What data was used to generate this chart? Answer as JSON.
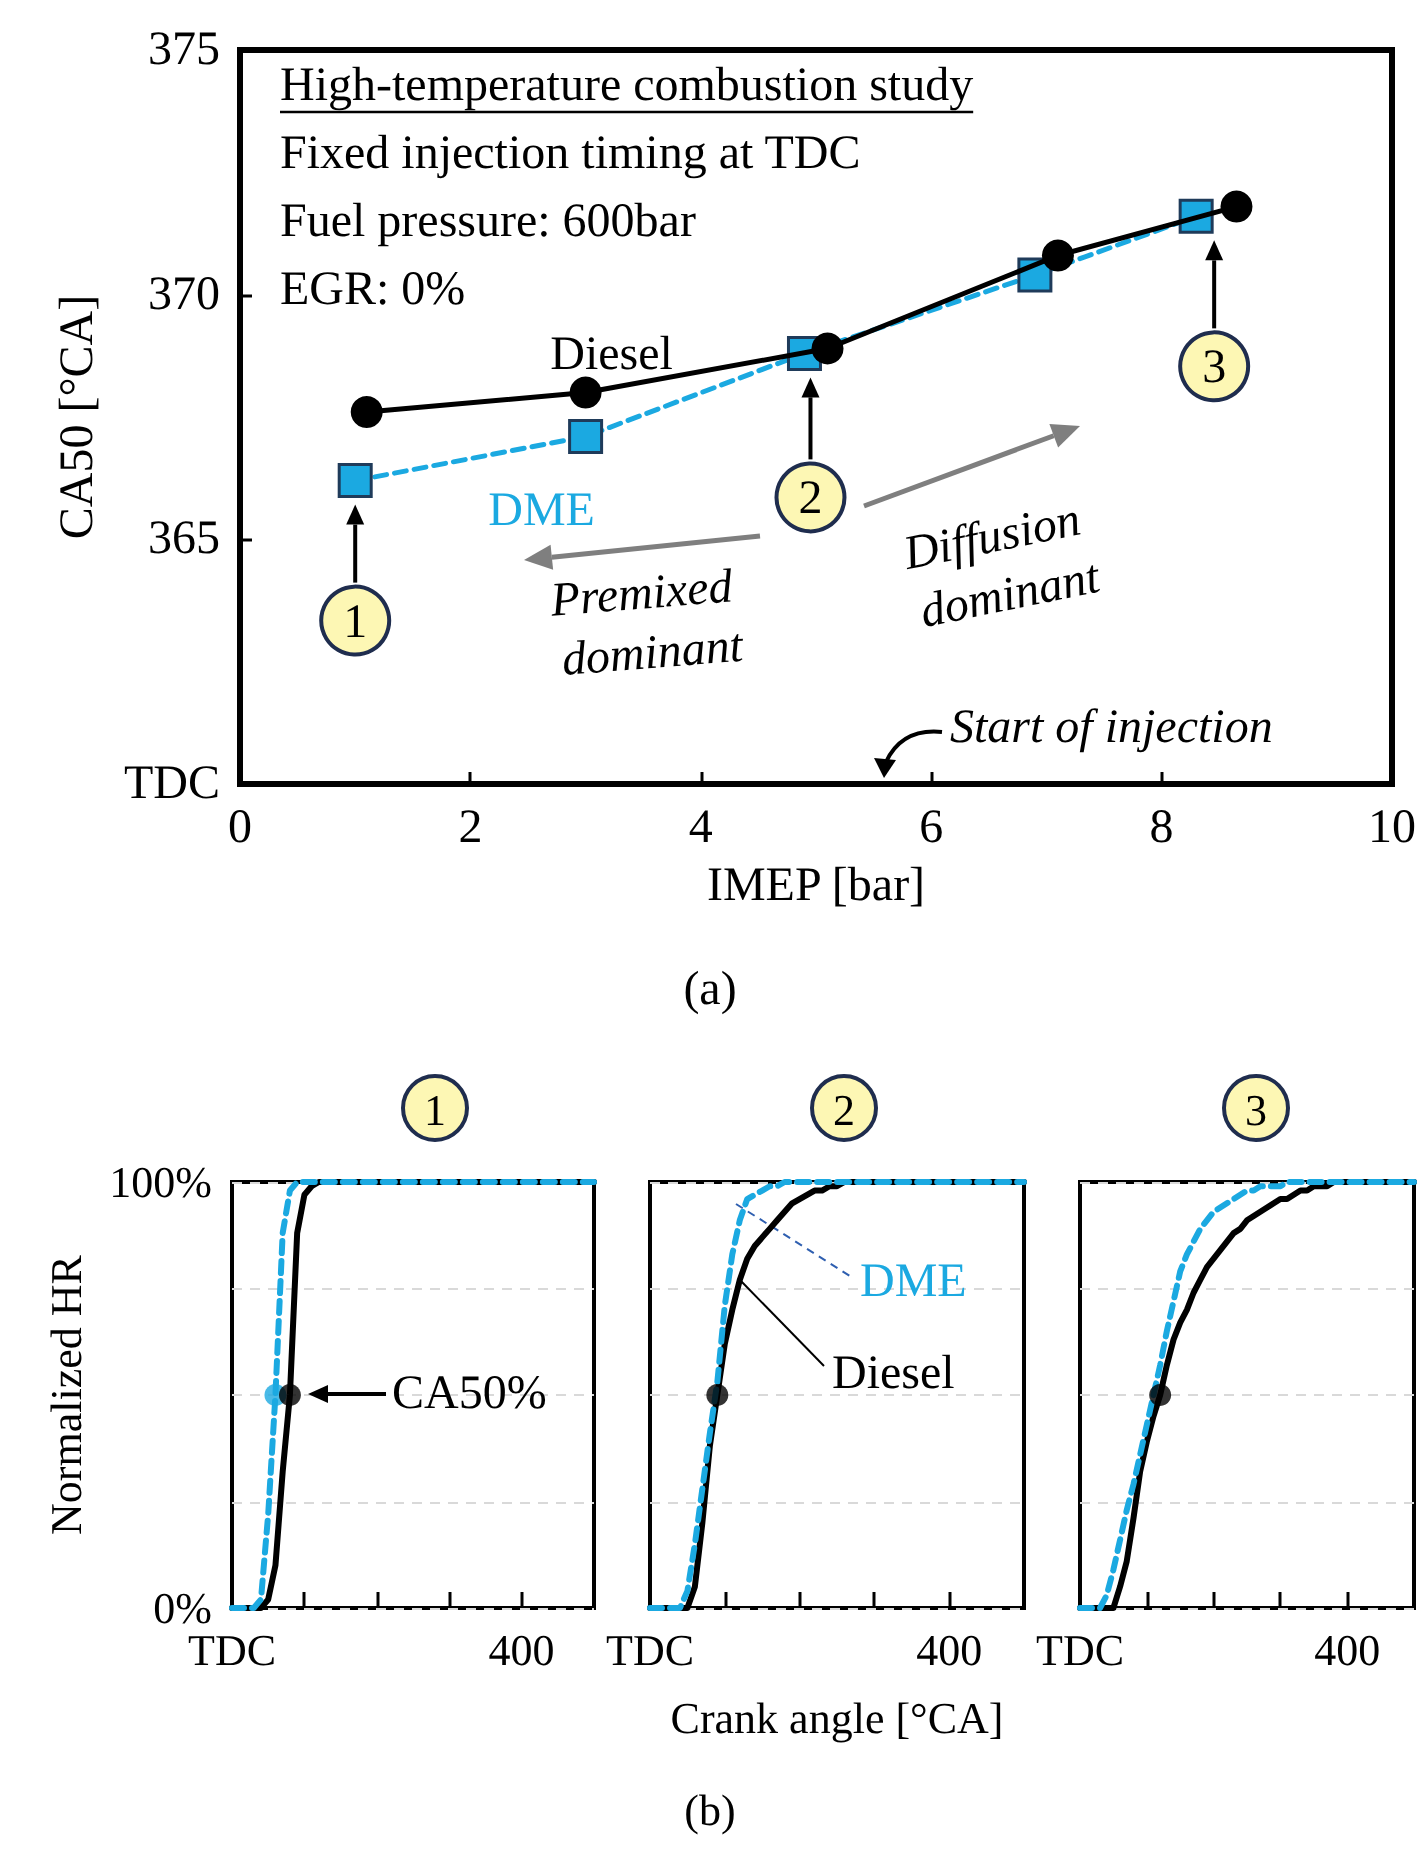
{
  "chart_data": [
    {
      "type": "line",
      "xlabel": "IMEP [bar]",
      "ylabel": "CA50 [°CA]",
      "xlim": [
        0,
        10
      ],
      "xticks": [
        0,
        2,
        4,
        6,
        8,
        10
      ],
      "ylim": [
        360,
        375
      ],
      "yticks": [
        {
          "value": 360,
          "label": "TDC"
        },
        365,
        370,
        375
      ],
      "annotations": [
        "High-temperature combustion study",
        "Fixed injection timing at TDC",
        "Fuel pressure: 600bar",
        "EGR: 0%",
        "Premixed dominant",
        "Diffusion dominant",
        "Start of injection",
        {
          "text": "1",
          "x": 1.0,
          "y": 366.2
        },
        {
          "text": "2",
          "x": 4.9,
          "y": 368.8
        },
        {
          "text": "3",
          "x": 8.3,
          "y": 371.6
        },
        "(a)"
      ],
      "series": [
        {
          "name": "Diesel",
          "color": "#000000",
          "marker": "circle",
          "line_style": "solid",
          "x": [
            1.1,
            3.0,
            5.1,
            7.1,
            8.65
          ],
          "values": [
            367.6,
            368.0,
            368.9,
            370.8,
            371.8
          ]
        },
        {
          "name": "DME",
          "color": "#1ba9e1",
          "marker": "square",
          "line_style": "dashed",
          "x": [
            1.0,
            3.0,
            4.9,
            6.9,
            8.3
          ],
          "values": [
            366.2,
            367.1,
            368.8,
            370.4,
            371.6
          ]
        }
      ]
    },
    {
      "type": "line",
      "title": "1",
      "ylabel": "Normalized HR",
      "categories": [
        "TDC",
        null,
        null,
        null,
        null,
        null,
        null,
        null,
        null,
        null,
        null,
        null,
        null,
        null,
        null,
        null,
        null,
        null,
        null,
        null,
        null,
        null,
        null,
        null,
        null,
        null,
        null,
        null,
        null,
        null,
        null,
        null,
        null,
        null,
        null,
        null,
        null,
        null,
        null,
        null,
        "400",
        null,
        null,
        null,
        null,
        null,
        null,
        null,
        null,
        null,
        null
      ],
      "ylim": [
        0,
        100
      ],
      "yticks": [
        {
          "value": 0,
          "label": "0%"
        },
        {
          "value": 25,
          "label": null
        },
        {
          "value": 50,
          "label": null
        },
        {
          "value": 75,
          "label": null
        },
        {
          "value": 100,
          "label": "100%"
        }
      ],
      "grid": "y",
      "marker": "none",
      "annotations": [
        "CA50%"
      ],
      "series": [
        {
          "color": "#1ba9e1",
          "line_style": "dashed",
          "values": [
            0,
            0,
            0,
            0,
            2,
            22,
            50,
            88,
            98,
            100,
            100,
            100,
            100,
            100,
            100,
            100,
            100,
            100,
            100,
            100,
            100,
            100,
            100,
            100,
            100,
            100,
            100,
            100,
            100,
            100,
            100,
            100,
            100,
            100,
            100,
            100,
            100,
            100,
            100,
            100,
            100,
            100,
            100,
            100,
            100,
            100,
            100,
            100,
            100,
            100,
            100
          ]
        },
        {
          "color": "#000000",
          "line_style": "solid",
          "values": [
            0,
            0,
            0,
            0,
            0,
            2,
            10,
            32,
            50,
            88,
            97,
            99,
            100,
            100,
            100,
            100,
            100,
            100,
            100,
            100,
            100,
            100,
            100,
            100,
            100,
            100,
            100,
            100,
            100,
            100,
            100,
            100,
            100,
            100,
            100,
            100,
            100,
            100,
            100,
            100,
            100,
            100,
            100,
            100,
            100,
            100,
            100,
            100,
            100,
            100,
            100
          ]
        },
        {
          "type": "scatter",
          "color": "#1ba9e1",
          "marker": "circle",
          "values": [
            null,
            null,
            null,
            null,
            null,
            null,
            50,
            null,
            null,
            null,
            null,
            null,
            null,
            null,
            null,
            null,
            null,
            null,
            null,
            null,
            null,
            null,
            null,
            null,
            null,
            null,
            null,
            null,
            null,
            null,
            null,
            null,
            null,
            null,
            null,
            null,
            null,
            null,
            null,
            null,
            null,
            null,
            null,
            null,
            null,
            null,
            null,
            null,
            null,
            null,
            null
          ]
        },
        {
          "type": "scatter",
          "color": "#000000",
          "marker": "circle",
          "values": [
            null,
            null,
            null,
            null,
            null,
            null,
            null,
            null,
            50,
            null,
            null,
            null,
            null,
            null,
            null,
            null,
            null,
            null,
            null,
            null,
            null,
            null,
            null,
            null,
            null,
            null,
            null,
            null,
            null,
            null,
            null,
            null,
            null,
            null,
            null,
            null,
            null,
            null,
            null,
            null,
            null,
            null,
            null,
            null,
            null,
            null,
            null,
            null,
            null,
            null,
            null
          ]
        }
      ]
    },
    {
      "type": "line",
      "title": "2",
      "xlabel": "Crank angle [°CA]",
      "categories": [
        "TDC",
        null,
        null,
        null,
        null,
        null,
        null,
        null,
        null,
        null,
        null,
        null,
        null,
        null,
        null,
        null,
        null,
        null,
        null,
        null,
        null,
        null,
        null,
        null,
        null,
        null,
        null,
        null,
        null,
        null,
        null,
        null,
        null,
        null,
        null,
        null,
        null,
        null,
        null,
        null,
        "400",
        null,
        null,
        null,
        null,
        null,
        null,
        null,
        null,
        null,
        null
      ],
      "ylim": [
        0,
        100
      ],
      "yticks": [
        {
          "value": 0,
          "label": "0%"
        },
        {
          "value": 25,
          "label": null
        },
        {
          "value": 50,
          "label": null
        },
        {
          "value": 75,
          "label": null
        },
        {
          "value": 100,
          "label": "100%"
        }
      ],
      "grid": "y",
      "marker": "none",
      "tick_labels": "x",
      "annotations": [
        "(b)"
      ],
      "series": [
        {
          "name": "DME",
          "color": "#1ba9e1",
          "line_style": "dashed",
          "values": [
            0,
            0,
            0,
            0,
            0,
            4,
            15,
            28,
            41,
            53,
            71,
            83,
            91,
            96,
            97,
            98,
            99,
            99,
            100,
            100,
            100,
            100,
            100,
            100,
            100,
            100,
            100,
            100,
            100,
            100,
            100,
            100,
            100,
            100,
            100,
            100,
            100,
            100,
            100,
            100,
            100,
            100,
            100,
            100,
            100,
            100,
            100,
            100,
            100,
            100,
            100
          ]
        },
        {
          "name": "Diesel",
          "color": "#000000",
          "line_style": "solid",
          "values": [
            0,
            0,
            0,
            0,
            0,
            0,
            5,
            20,
            38,
            50,
            62,
            70,
            77,
            82,
            85,
            87,
            89,
            91,
            93,
            95,
            96,
            97,
            98,
            98,
            99,
            99,
            100,
            100,
            100,
            100,
            100,
            100,
            100,
            100,
            100,
            100,
            100,
            100,
            100,
            100,
            100,
            100,
            100,
            100,
            100,
            100,
            100,
            100,
            100,
            100,
            100
          ]
        },
        {
          "type": "scatter",
          "color": "#000000",
          "marker": "circle",
          "values": [
            null,
            null,
            null,
            null,
            null,
            null,
            null,
            null,
            null,
            50,
            null,
            null,
            null,
            null,
            null,
            null,
            null,
            null,
            null,
            null,
            null,
            null,
            null,
            null,
            null,
            null,
            null,
            null,
            null,
            null,
            null,
            null,
            null,
            null,
            null,
            null,
            null,
            null,
            null,
            null,
            null,
            null,
            null,
            null,
            null,
            null,
            null,
            null,
            null,
            null,
            null
          ]
        }
      ]
    },
    {
      "type": "line",
      "title": "3",
      "categories": [
        "TDC",
        null,
        null,
        null,
        null,
        null,
        null,
        null,
        null,
        null,
        null,
        null,
        null,
        null,
        null,
        null,
        null,
        null,
        null,
        null,
        null,
        null,
        null,
        null,
        null,
        null,
        null,
        null,
        null,
        null,
        null,
        null,
        null,
        null,
        null,
        null,
        null,
        null,
        null,
        null,
        "400",
        null,
        null,
        null,
        null,
        null,
        null,
        null,
        null,
        null,
        null
      ],
      "ylim": [
        0,
        100
      ],
      "yticks": [
        {
          "value": 0,
          "label": "0%"
        },
        {
          "value": 25,
          "label": null
        },
        {
          "value": 50,
          "label": null
        },
        {
          "value": 75,
          "label": null
        },
        {
          "value": 100,
          "label": "100%"
        }
      ],
      "grid": "y",
      "marker": "none",
      "tick_labels": "x",
      "series": [
        {
          "color": "#1ba9e1",
          "line_style": "dashed",
          "values": [
            0,
            0,
            0,
            0,
            3,
            9,
            16,
            23,
            29,
            36,
            43,
            50,
            57,
            65,
            72,
            79,
            83,
            86,
            89,
            91,
            93,
            94,
            95,
            96,
            97,
            98,
            98,
            99,
            99,
            99,
            99,
            100,
            100,
            100,
            100,
            100,
            100,
            100,
            100,
            100,
            100,
            100,
            100,
            100,
            100,
            100,
            100,
            100,
            100,
            100,
            100
          ]
        },
        {
          "color": "#000000",
          "line_style": "solid",
          "values": [
            0,
            0,
            0,
            0,
            0,
            0,
            5,
            11,
            21,
            32,
            39,
            45,
            50,
            57,
            63,
            67,
            70,
            74,
            77,
            80,
            82,
            84,
            86,
            88,
            89,
            91,
            92,
            93,
            94,
            95,
            96,
            96,
            97,
            98,
            98,
            99,
            99,
            99,
            100,
            100,
            100,
            100,
            100,
            100,
            100,
            100,
            100,
            100,
            100,
            100,
            100
          ]
        },
        {
          "type": "scatter",
          "color": "#000000",
          "marker": "circle",
          "values": [
            null,
            null,
            null,
            null,
            null,
            null,
            null,
            null,
            null,
            null,
            null,
            null,
            50,
            null,
            null,
            null,
            null,
            null,
            null,
            null,
            null,
            null,
            null,
            null,
            null,
            null,
            null,
            null,
            null,
            null,
            null,
            null,
            null,
            null,
            null,
            null,
            null,
            null,
            null,
            null,
            null,
            null,
            null,
            null,
            null,
            null,
            null,
            null,
            null,
            null,
            null
          ]
        }
      ]
    }
  ]
}
